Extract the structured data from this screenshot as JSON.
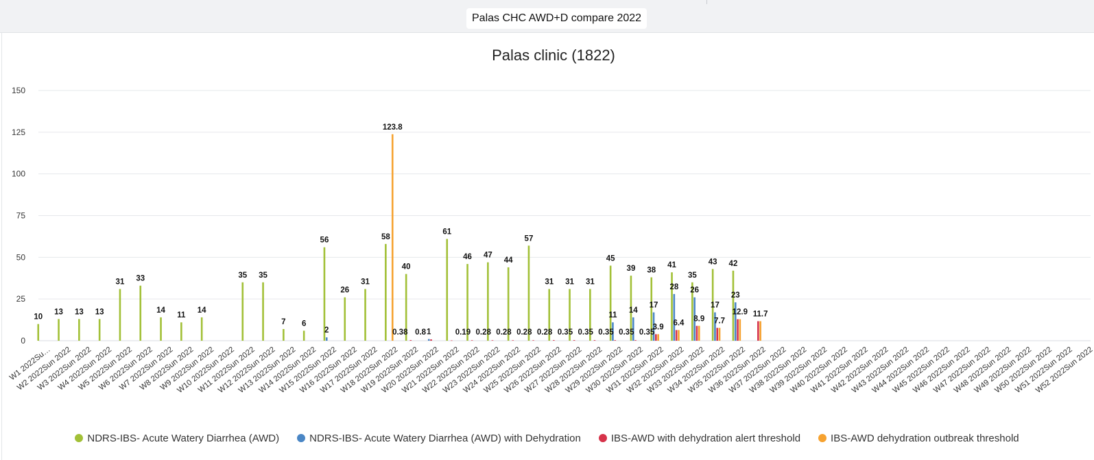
{
  "dashboard": {
    "title": "Palas CHC AWD+D compare 2022"
  },
  "chart_data": {
    "type": "bar",
    "title": "Palas clinic (1822)",
    "xlabel": "",
    "ylabel": "",
    "ylim": [
      0,
      150
    ],
    "yticks": [
      0,
      25,
      50,
      75,
      100,
      125,
      150
    ],
    "grid": true,
    "legend_position": "bottom",
    "categories": [
      "W1 2022Su…",
      "W2 2022Sun 2022",
      "W3 2022Sun 2022",
      "W4 2022Sun 2022",
      "W5 2022Sun 2022",
      "W6 2022Sun 2022",
      "W7 2022Sun 2022",
      "W8 2022Sun 2022",
      "W9 2022Sun 2022",
      "W10 2022Sun 2022",
      "W11 2022Sun 2022",
      "W12 2022Sun 2022",
      "W13 2022Sun 2022",
      "W14 2022Sun 2022",
      "W15 2022Sun 2022",
      "W16 2022Sun 2022",
      "W17 2022Sun 2022",
      "W18 2022Sun 2022",
      "W19 2022Sun 2022",
      "W20 2022Sun 2022",
      "W21 2022Sun 2022",
      "W22 2022Sun 2022",
      "W23 2022Sun 2022",
      "W24 2022Sun 2022",
      "W25 2022Sun 2022",
      "W26 2022Sun 2022",
      "W27 2022Sun 2022",
      "W28 2022Sun 2022",
      "W29 2022Sun 2022",
      "W30 2022Sun 2022",
      "W31 2022Sun 2022",
      "W32 2022Sun 2022",
      "W33 2022Sun 2022",
      "W34 2022Sun 2022",
      "W35 2022Sun 2022",
      "W36 2022Sun 2022",
      "W37 2022Sun 2022",
      "W38 2022Sun 2022",
      "W39 2022Sun 2022",
      "W40 2022Sun 2022",
      "W41 2022Sun 2022",
      "W42 2022Sun 2022",
      "W43 2022Sun 2022",
      "W44 2022Sun 2022",
      "W45 2022Sun 2022",
      "W46 2022Sun 2022",
      "W47 2022Sun 2022",
      "W48 2022Sun 2022",
      "W49 2022Sun 2022",
      "W50 2022Sun 2022",
      "W51 2022Sun 2022",
      "W52 2022Sun 2022"
    ],
    "series": [
      {
        "name": "NDRS-IBS- Acute Watery Diarrhea (AWD)",
        "color": "#a2c037",
        "values": [
          10,
          13,
          13,
          13,
          31,
          33,
          14,
          11,
          14,
          null,
          35,
          35,
          7,
          6,
          56,
          26,
          31,
          58,
          40,
          null,
          61,
          46,
          47,
          44,
          57,
          31,
          31,
          31,
          45,
          39,
          38,
          41,
          35,
          43,
          42,
          null,
          null,
          null,
          null,
          null,
          null,
          null,
          null,
          null,
          null,
          null,
          null,
          null,
          null,
          null,
          null,
          null
        ]
      },
      {
        "name": "NDRS-IBS- Acute Watery Diarrhea (AWD) with Dehydration",
        "color": "#4a86c5",
        "values": [
          null,
          null,
          null,
          null,
          null,
          null,
          null,
          null,
          null,
          null,
          null,
          null,
          null,
          null,
          2,
          null,
          null,
          null,
          null,
          1,
          null,
          null,
          null,
          null,
          null,
          null,
          null,
          null,
          11,
          14,
          17,
          28,
          26,
          17,
          23,
          null,
          null,
          null,
          null,
          null,
          null,
          null,
          null,
          null,
          null,
          null,
          null,
          null,
          null,
          null,
          null,
          null
        ]
      },
      {
        "name": "IBS-AWD with dehydration alert threshold",
        "color": "#d6334a",
        "values": [
          null,
          null,
          null,
          null,
          null,
          null,
          null,
          null,
          null,
          null,
          null,
          null,
          null,
          null,
          null,
          null,
          null,
          null,
          0.38,
          0.8,
          0.19,
          0.28,
          0.28,
          0.28,
          0.28,
          0.35,
          0.35,
          0.35,
          0.35,
          0.35,
          3.9,
          6.4,
          8.9,
          7.7,
          12.9,
          11.7,
          null,
          null,
          null,
          null,
          null,
          null,
          null,
          null,
          null,
          null,
          null,
          null,
          null,
          null,
          null,
          null
        ]
      },
      {
        "name": "IBS-AWD dehydration outbreak threshold",
        "color": "#f6a230",
        "values": [
          null,
          null,
          null,
          null,
          null,
          null,
          null,
          null,
          null,
          null,
          null,
          null,
          null,
          null,
          null,
          null,
          null,
          123.8,
          null,
          null,
          null,
          null,
          null,
          null,
          null,
          null,
          null,
          null,
          null,
          null,
          3.9,
          6.4,
          8.9,
          7.7,
          12.9,
          11.7,
          null,
          null,
          null,
          null,
          null,
          null,
          null,
          null,
          null,
          null,
          null,
          null,
          null,
          null,
          null,
          null
        ]
      }
    ],
    "data_labels": [
      {
        "category": "W1 2022Su…",
        "series": 0,
        "text": "10"
      },
      {
        "category": "W2 2022Sun 2022",
        "series": 0,
        "text": "13"
      },
      {
        "category": "W3 2022Sun 2022",
        "series": 0,
        "text": "13"
      },
      {
        "category": "W4 2022Sun 2022",
        "series": 0,
        "text": "13"
      },
      {
        "category": "W5 2022Sun 2022",
        "series": 0,
        "text": "31"
      },
      {
        "category": "W6 2022Sun 2022",
        "series": 0,
        "text": "33"
      },
      {
        "category": "W7 2022Sun 2022",
        "series": 0,
        "text": "14"
      },
      {
        "category": "W8 2022Sun 2022",
        "series": 0,
        "text": "11"
      },
      {
        "category": "W9 2022Sun 2022",
        "series": 0,
        "text": "14"
      },
      {
        "category": "W11 2022Sun 2022",
        "series": 0,
        "text": "35"
      },
      {
        "category": "W12 2022Sun 2022",
        "series": 0,
        "text": "35"
      },
      {
        "category": "W13 2022Sun 2022",
        "series": 0,
        "text": "7"
      },
      {
        "category": "W14 2022Sun 2022",
        "series": 0,
        "text": "6"
      },
      {
        "category": "W15 2022Sun 2022",
        "series": 0,
        "text": "56"
      },
      {
        "category": "W15 2022Sun 2022",
        "series": 1,
        "text": "2"
      },
      {
        "category": "W16 2022Sun 2022",
        "series": 0,
        "text": "26"
      },
      {
        "category": "W17 2022Sun 2022",
        "series": 0,
        "text": "31"
      },
      {
        "category": "W18 2022Sun 2022",
        "series": 0,
        "text": "58"
      },
      {
        "category": "W18 2022Sun 2022",
        "series": 3,
        "text": "123.8"
      },
      {
        "category": "W19 2022Sun 2022",
        "series": 0,
        "text": "40"
      },
      {
        "category": "W19 2022Sun 2022",
        "series": 2,
        "text": "0.38",
        "anchor": "cat-left"
      },
      {
        "category": "W20 2022Sun 2022",
        "series": 2,
        "text": "0.8",
        "anchor": "cat-left"
      },
      {
        "category": "W20 2022Sun 2022",
        "series": 1,
        "text": "1"
      },
      {
        "category": "W21 2022Sun 2022",
        "series": 0,
        "text": "61"
      },
      {
        "category": "W21 2022Sun 2022",
        "series": 2,
        "text": "0.19",
        "anchor": "cat-right"
      },
      {
        "category": "W22 2022Sun 2022",
        "series": 0,
        "text": "46"
      },
      {
        "category": "W22 2022Sun 2022",
        "series": 2,
        "text": "0.28",
        "anchor": "cat-right"
      },
      {
        "category": "W23 2022Sun 2022",
        "series": 0,
        "text": "47"
      },
      {
        "category": "W23 2022Sun 2022",
        "series": 2,
        "text": "0.28",
        "anchor": "cat-right"
      },
      {
        "category": "W24 2022Sun 2022",
        "series": 0,
        "text": "44"
      },
      {
        "category": "W24 2022Sun 2022",
        "series": 2,
        "text": "0.28",
        "anchor": "cat-right"
      },
      {
        "category": "W25 2022Sun 2022",
        "series": 0,
        "text": "57"
      },
      {
        "category": "W25 2022Sun 2022",
        "series": 2,
        "text": "0.28",
        "anchor": "cat-right"
      },
      {
        "category": "W26 2022Sun 2022",
        "series": 0,
        "text": "31"
      },
      {
        "category": "W26 2022Sun 2022",
        "series": 2,
        "text": "0.35",
        "anchor": "cat-right"
      },
      {
        "category": "W27 2022Sun 2022",
        "series": 0,
        "text": "31"
      },
      {
        "category": "W27 2022Sun 2022",
        "series": 2,
        "text": "0.35",
        "anchor": "cat-right"
      },
      {
        "category": "W28 2022Sun 2022",
        "series": 0,
        "text": "31"
      },
      {
        "category": "W28 2022Sun 2022",
        "series": 2,
        "text": "0.35",
        "anchor": "cat-right"
      },
      {
        "category": "W29 2022Sun 2022",
        "series": 0,
        "text": "45"
      },
      {
        "category": "W29 2022Sun 2022",
        "series": 1,
        "text": "11"
      },
      {
        "category": "W29 2022Sun 2022",
        "series": 2,
        "text": "0.35",
        "anchor": "cat-right"
      },
      {
        "category": "W30 2022Sun 2022",
        "series": 0,
        "text": "39"
      },
      {
        "category": "W30 2022Sun 2022",
        "series": 1,
        "text": "14"
      },
      {
        "category": "W30 2022Sun 2022",
        "series": 2,
        "text": "0.35",
        "anchor": "cat-right"
      },
      {
        "category": "W31 2022Sun 2022",
        "series": 0,
        "text": "38"
      },
      {
        "category": "W31 2022Sun 2022",
        "series": 1,
        "text": "17"
      },
      {
        "category": "W31 2022Sun 2022",
        "series": 3,
        "text": "3.9"
      },
      {
        "category": "W32 2022Sun 2022",
        "series": 0,
        "text": "41"
      },
      {
        "category": "W32 2022Sun 2022",
        "series": 1,
        "text": "28"
      },
      {
        "category": "W32 2022Sun 2022",
        "series": 3,
        "text": "6.4"
      },
      {
        "category": "W33 2022Sun 2022",
        "series": 0,
        "text": "35"
      },
      {
        "category": "W33 2022Sun 2022",
        "series": 1,
        "text": "26"
      },
      {
        "category": "W33 2022Sun 2022",
        "series": 3,
        "text": "8.9"
      },
      {
        "category": "W34 2022Sun 2022",
        "series": 0,
        "text": "43"
      },
      {
        "category": "W34 2022Sun 2022",
        "series": 1,
        "text": "17"
      },
      {
        "category": "W34 2022Sun 2022",
        "series": 3,
        "text": "7.7"
      },
      {
        "category": "W35 2022Sun 2022",
        "series": 0,
        "text": "42"
      },
      {
        "category": "W35 2022Sun 2022",
        "series": 1,
        "text": "23"
      },
      {
        "category": "W35 2022Sun 2022",
        "series": 3,
        "text": "12.9"
      },
      {
        "category": "W36 2022Sun 2022",
        "series": 3,
        "text": "11.7"
      }
    ]
  }
}
